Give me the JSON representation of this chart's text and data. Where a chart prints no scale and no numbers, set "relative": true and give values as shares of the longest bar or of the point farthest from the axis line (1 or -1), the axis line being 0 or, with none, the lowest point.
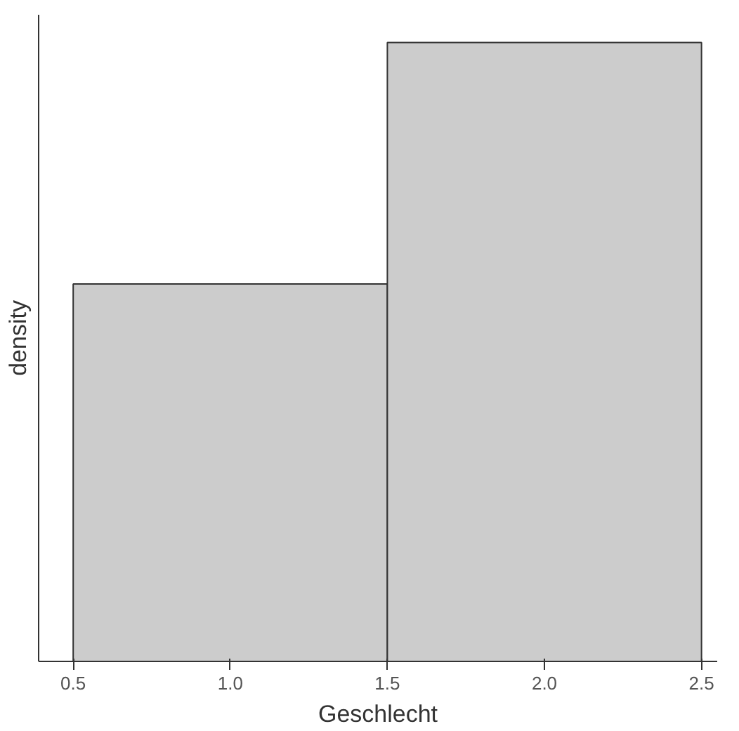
{
  "chart_data": {
    "type": "bar",
    "xlabel": "Geschlecht",
    "ylabel": "density",
    "relative": true,
    "x": [
      1.0,
      2.0
    ],
    "values": [
      0.61,
      1
    ],
    "color": "#cccccc",
    "xlim": [
      0.39,
      2.55
    ],
    "xticks": [
      {
        "value": 0.5,
        "label": "0.5"
      },
      {
        "value": 1.0,
        "label": "1.0"
      },
      {
        "value": 1.5,
        "label": "1.5"
      },
      {
        "value": 2.0,
        "label": "2.0"
      },
      {
        "value": 2.5,
        "label": "2.5"
      }
    ],
    "grid": false
  }
}
